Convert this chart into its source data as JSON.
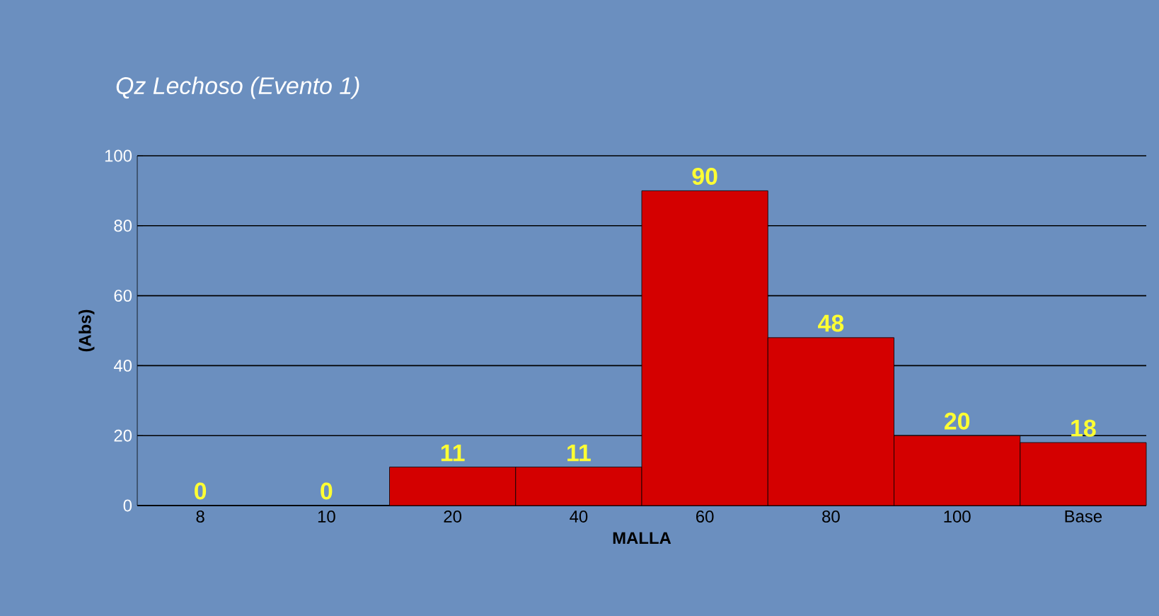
{
  "chart_data": {
    "type": "bar",
    "title": "Qz Lechoso (Evento 1)",
    "xlabel": "MALLA",
    "ylabel": "(Abs)",
    "categories": [
      "8",
      "10",
      "20",
      "40",
      "60",
      "80",
      "100",
      "Base"
    ],
    "values": [
      0,
      0,
      11,
      11,
      90,
      48,
      20,
      18
    ],
    "color": "#d40000",
    "ylim": [
      0,
      100
    ],
    "yticks": [
      0,
      20,
      40,
      60,
      80,
      100
    ],
    "grid": "y",
    "data_labels": true
  }
}
